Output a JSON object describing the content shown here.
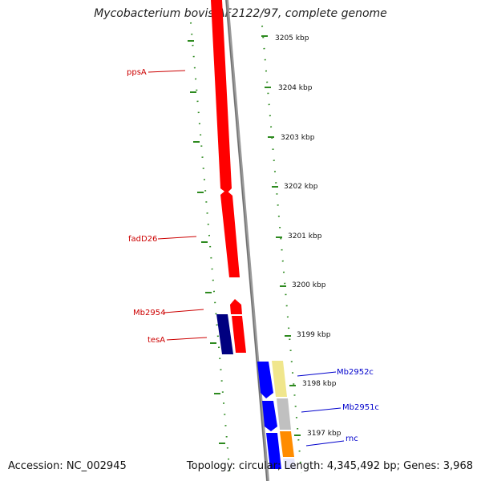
{
  "title": "Mycobacterium bovis AF2122/97, complete genome",
  "accession": "Accession: NC_002945",
  "topology": "Topology: circular; Length: 4,345,492 bp; Genes: 3,968",
  "colors": {
    "reverse_label": "#cc0000",
    "forward_label": "#0000cc",
    "backbone": "#808080",
    "tick": "#2d8a1f",
    "red_gene": "#ff0000",
    "navy_gene": "#000080",
    "blue_gene": "#0000ff",
    "yellow_gene": "#f0e68c",
    "grey_gene": "#c0c0c0",
    "orange_gene": "#ff8c00",
    "lavender_gene": "#e6e6fa"
  },
  "scale_labels": [
    "3205 kbp",
    "3204 kbp",
    "3203 kbp",
    "3202 kbp",
    "3201 kbp",
    "3200 kbp",
    "3199 kbp",
    "3198 kbp",
    "3197 kbp"
  ],
  "gene_labels_left": [
    "ppsA",
    "fadD26",
    "Mb2954",
    "tesA"
  ],
  "gene_labels_right": [
    "Mb2952c",
    "Mb2951c",
    "rnc"
  ]
}
